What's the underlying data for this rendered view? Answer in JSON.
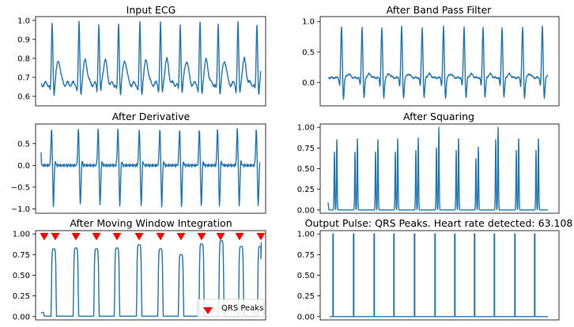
{
  "colors": {
    "trace": "#1f77b4",
    "peak_marker": "#ff0000",
    "axes": "#000000",
    "background": "#ffffff"
  },
  "chart_data": [
    {
      "type": "line",
      "title": "Input ECG",
      "xlabel": "",
      "ylabel": "",
      "ylim": [
        0.55,
        1.02
      ],
      "yticks": [
        0.6,
        0.7,
        0.8,
        0.9,
        1.0
      ],
      "ytick_labels": [
        "0.6",
        "0.7",
        "0.8",
        "0.9",
        "1.0"
      ],
      "baseline": 0.665,
      "beat_count": 11,
      "r_peak": 0.985,
      "q_trough": 0.6,
      "s_trough": 0.6,
      "t_wave": 0.79,
      "grid": false
    },
    {
      "type": "line",
      "title": "After Band Pass Filter",
      "ylim": [
        -0.38,
        1.08
      ],
      "yticks": [
        0.0,
        0.5,
        1.0
      ],
      "ytick_labels": [
        "0.0",
        "0.5",
        "1.0"
      ],
      "baseline": 0.08,
      "r_peak": 0.92,
      "s_trough": -0.28,
      "beat_count": 11,
      "grid": false
    },
    {
      "type": "line",
      "title": "After Derivative",
      "ylim": [
        -1.1,
        0.95
      ],
      "yticks": [
        -1.0,
        -0.5,
        0.0,
        0.5
      ],
      "ytick_labels": [
        "−1.0",
        "−0.5",
        "0.0",
        "0.5"
      ],
      "baseline": 0.0,
      "r_peak": 0.85,
      "s_trough": -0.95,
      "initial_value": 0.3,
      "beat_count": 11,
      "grid": false
    },
    {
      "type": "line",
      "title": "After Squaring",
      "ylim": [
        -0.04,
        1.04
      ],
      "yticks": [
        0.0,
        0.25,
        0.5,
        0.75,
        1.0
      ],
      "ytick_labels": [
        "0.00",
        "0.25",
        "0.50",
        "0.75",
        "1.00"
      ],
      "baseline": 0.0,
      "peak_pairs": [
        [
          0.7,
          0.85
        ],
        [
          0.7,
          0.86
        ],
        [
          0.7,
          0.85
        ],
        [
          0.7,
          0.86
        ],
        [
          0.72,
          0.87
        ],
        [
          0.75,
          1.0
        ],
        [
          0.72,
          0.86
        ],
        [
          0.62,
          0.76
        ],
        [
          0.85,
          1.0
        ],
        [
          0.72,
          0.86
        ],
        [
          0.72,
          0.86
        ]
      ],
      "beat_count": 11,
      "grid": false
    },
    {
      "type": "line",
      "title": "After Moving Window Integration",
      "ylim": [
        -0.04,
        1.04
      ],
      "yticks": [
        0.0,
        0.25,
        0.5,
        0.75,
        1.0
      ],
      "ytick_labels": [
        "0.00",
        "0.25",
        "0.50",
        "0.75",
        "1.00"
      ],
      "pulse_heights": [
        0.82,
        0.83,
        0.82,
        0.83,
        0.87,
        0.82,
        0.75,
        0.88,
        0.92,
        0.85,
        0.85
      ],
      "marker_level": 0.97,
      "legend": {
        "entries": [
          "QRS Peaks"
        ],
        "location": "lower-right",
        "marker": "triangle-down"
      },
      "grid": false
    },
    {
      "type": "line",
      "title": "Output Pulse: QRS Peaks. Heart rate detected: 63.108",
      "ylim": [
        -0.04,
        1.04
      ],
      "yticks": [
        0.0,
        0.25,
        0.5,
        0.75,
        1.0
      ],
      "ytick_labels": [
        "0.00",
        "0.25",
        "0.50",
        "0.75",
        "1.00"
      ],
      "pulse_value": 1.0,
      "pulse_count": 11,
      "grid": false
    }
  ]
}
